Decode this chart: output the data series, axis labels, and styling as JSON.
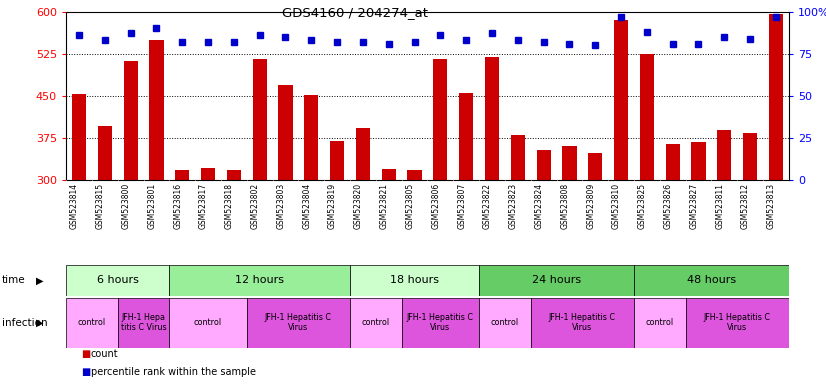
{
  "title": "GDS4160 / 204274_at",
  "samples": [
    "GSM523814",
    "GSM523815",
    "GSM523800",
    "GSM523801",
    "GSM523816",
    "GSM523817",
    "GSM523818",
    "GSM523802",
    "GSM523803",
    "GSM523804",
    "GSM523819",
    "GSM523820",
    "GSM523821",
    "GSM523805",
    "GSM523806",
    "GSM523807",
    "GSM523822",
    "GSM523823",
    "GSM523824",
    "GSM523808",
    "GSM523809",
    "GSM523810",
    "GSM523825",
    "GSM523826",
    "GSM523827",
    "GSM523811",
    "GSM523812",
    "GSM523813"
  ],
  "counts": [
    453,
    397,
    512,
    549,
    318,
    322,
    319,
    516,
    470,
    452,
    370,
    393,
    320,
    318,
    516,
    456,
    519,
    380,
    355,
    362,
    348,
    585,
    524,
    365,
    368,
    390,
    385,
    595
  ],
  "percentile": [
    86,
    83,
    87,
    90,
    82,
    82,
    82,
    86,
    85,
    83,
    82,
    82,
    81,
    82,
    86,
    83,
    87,
    83,
    82,
    81,
    80,
    97,
    88,
    81,
    81,
    85,
    84,
    97
  ],
  "ylim_left": [
    300,
    600
  ],
  "ylim_right": [
    0,
    100
  ],
  "yticks_left": [
    300,
    375,
    450,
    525,
    600
  ],
  "yticks_right": [
    0,
    25,
    50,
    75,
    100
  ],
  "bar_color": "#cc0000",
  "dot_color": "#0000cc",
  "time_groups": [
    {
      "label": "6 hours",
      "start": 0,
      "end": 4,
      "color": "#ccffcc"
    },
    {
      "label": "12 hours",
      "start": 4,
      "end": 11,
      "color": "#99ee99"
    },
    {
      "label": "18 hours",
      "start": 11,
      "end": 16,
      "color": "#ccffcc"
    },
    {
      "label": "24 hours",
      "start": 16,
      "end": 22,
      "color": "#55cc55"
    },
    {
      "label": "48 hours",
      "start": 22,
      "end": 28,
      "color": "#55cc55"
    }
  ],
  "infection_groups": [
    {
      "label": "control",
      "start": 0,
      "end": 2,
      "color": "#ffaaff"
    },
    {
      "label": "JFH-1 Hepa\ntitis C Virus",
      "start": 2,
      "end": 4,
      "color": "#ee77ee"
    },
    {
      "label": "control",
      "start": 4,
      "end": 7,
      "color": "#ffaaff"
    },
    {
      "label": "JFH-1 Hepatitis C\nVirus",
      "start": 7,
      "end": 11,
      "color": "#ee77ee"
    },
    {
      "label": "control",
      "start": 11,
      "end": 13,
      "color": "#ffaaff"
    },
    {
      "label": "JFH-1 Hepatitis C\nVirus",
      "start": 13,
      "end": 16,
      "color": "#ee77ee"
    },
    {
      "label": "control",
      "start": 16,
      "end": 18,
      "color": "#ffaaff"
    },
    {
      "label": "JFH-1 Hepatitis C\nVirus",
      "start": 18,
      "end": 22,
      "color": "#ee77ee"
    },
    {
      "label": "control",
      "start": 22,
      "end": 24,
      "color": "#ffaaff"
    },
    {
      "label": "JFH-1 Hepatitis C\nVirus",
      "start": 24,
      "end": 28,
      "color": "#ee77ee"
    }
  ],
  "xtick_bg": "#d8d8d8",
  "plot_bg": "#ffffff"
}
